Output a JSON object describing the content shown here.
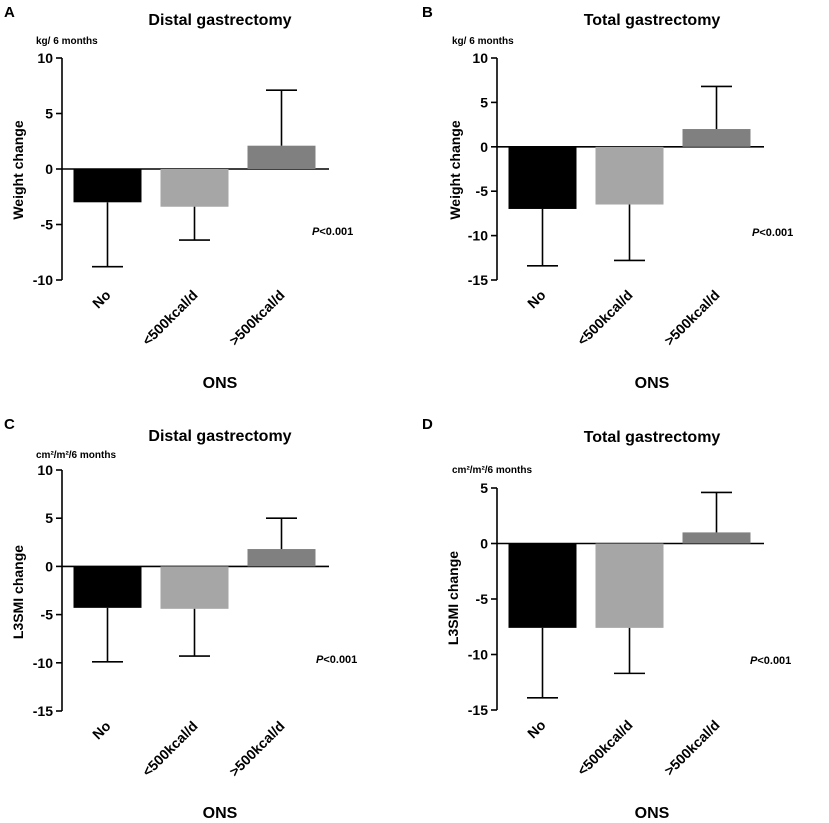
{
  "figure": {
    "xlabel": "ONS"
  },
  "chart_data": [
    {
      "panel": "A",
      "type": "bar",
      "title": "Distal gastrectomy",
      "unit": "kg/ 6 months",
      "ylabel": "Weight change",
      "xlabel": "ONS",
      "categories": [
        "No",
        "<500kcal/d",
        ">500kcal/d"
      ],
      "values": [
        -3.0,
        -3.4,
        2.1
      ],
      "error_bars": [
        {
          "category": "No",
          "direction": "down",
          "end": -8.8
        },
        {
          "category": "<500kcal/d",
          "direction": "down",
          "end": -6.4
        },
        {
          "category": ">500kcal/d",
          "direction": "up",
          "end": 7.1
        }
      ],
      "bar_colors": [
        "#000000",
        "#a6a6a6",
        "#808080"
      ],
      "ylim": [
        -10,
        10
      ],
      "yticks": [
        10,
        5,
        0,
        -5,
        -10
      ],
      "ytick_labels": [
        "10",
        "5",
        "0",
        "-5",
        "-10"
      ],
      "annotation_prefix": "P",
      "annotation_value": "<0.001"
    },
    {
      "panel": "B",
      "type": "bar",
      "title": "Total gastrectomy",
      "unit": "kg/ 6 months",
      "ylabel": "Weight change",
      "xlabel": "ONS",
      "categories": [
        "No",
        "<500kcal/d",
        ">500kcal/d"
      ],
      "values": [
        -7.0,
        -6.5,
        2.0
      ],
      "error_bars": [
        {
          "category": "No",
          "direction": "down",
          "end": -13.4
        },
        {
          "category": "<500kcal/d",
          "direction": "down",
          "end": -12.8
        },
        {
          "category": ">500kcal/d",
          "direction": "up",
          "end": 6.8
        }
      ],
      "bar_colors": [
        "#000000",
        "#a6a6a6",
        "#808080"
      ],
      "ylim": [
        -15,
        10
      ],
      "yticks": [
        10,
        5,
        0,
        -5,
        -10,
        -15
      ],
      "ytick_labels": [
        "10",
        "5",
        "0",
        "-5",
        "-10",
        "-15"
      ],
      "annotation_prefix": "P",
      "annotation_value": "<0.001"
    },
    {
      "panel": "C",
      "type": "bar",
      "title": "Distal gastrectomy",
      "unit": "cm²/m²/6 months",
      "ylabel": "L3SMI change",
      "xlabel": "ONS",
      "categories": [
        "No",
        "<500kcal/d",
        ">500kcal/d"
      ],
      "values": [
        -4.3,
        -4.4,
        1.8
      ],
      "error_bars": [
        {
          "category": "No",
          "direction": "down",
          "end": -9.9
        },
        {
          "category": "<500kcal/d",
          "direction": "down",
          "end": -9.3
        },
        {
          "category": ">500kcal/d",
          "direction": "up",
          "end": 5.0
        }
      ],
      "bar_colors": [
        "#000000",
        "#a6a6a6",
        "#808080"
      ],
      "ylim": [
        -15,
        10
      ],
      "yticks": [
        10,
        5,
        0,
        -5,
        -10,
        -15
      ],
      "ytick_labels": [
        "10",
        "5",
        "0",
        "-5",
        "-10",
        "-15"
      ],
      "annotation_prefix": "P",
      "annotation_value": "<0.001"
    },
    {
      "panel": "D",
      "type": "bar",
      "title": "Total gastrectomy",
      "unit": "cm²/m²/6 months",
      "ylabel": "L3SMI change",
      "xlabel": "ONS",
      "categories": [
        "No",
        "<500kcal/d",
        ">500kcal/d"
      ],
      "values": [
        -7.6,
        -7.6,
        1.0
      ],
      "error_bars": [
        {
          "category": "No",
          "direction": "down",
          "end": -13.9
        },
        {
          "category": "<500kcal/d",
          "direction": "down",
          "end": -11.7
        },
        {
          "category": ">500kcal/d",
          "direction": "up",
          "end": 4.6
        }
      ],
      "bar_colors": [
        "#000000",
        "#a6a6a6",
        "#808080"
      ],
      "ylim": [
        -15,
        5
      ],
      "yticks": [
        5,
        0,
        -5,
        -10,
        -15
      ],
      "ytick_labels": [
        "5",
        "0",
        "-5",
        "-10",
        "-15"
      ],
      "annotation_prefix": "P",
      "annotation_value": "<0.001"
    }
  ]
}
